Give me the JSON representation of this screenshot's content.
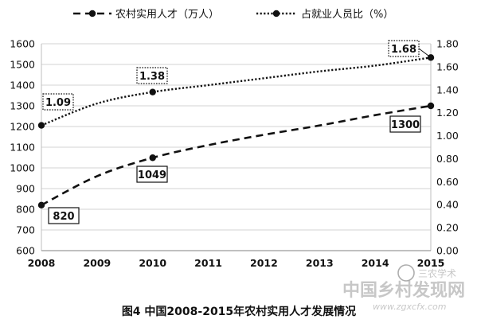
{
  "chart_data": {
    "type": "line",
    "title": "",
    "caption": "图4 中国2008-2015年农村实用人才发展情况",
    "x": [
      "2008",
      "2009",
      "2010",
      "2011",
      "2012",
      "2013",
      "2014",
      "2015"
    ],
    "y_left": {
      "min": 600,
      "max": 1600,
      "step": 100,
      "ticks": [
        "600",
        "700",
        "800",
        "900",
        "1000",
        "1100",
        "1200",
        "1300",
        "1400",
        "1500",
        "1600"
      ]
    },
    "y_right": {
      "min": 0,
      "max": 1.8,
      "step": 0.2,
      "ticks": [
        "0.00",
        "0.20",
        "0.40",
        "0.60",
        "0.80",
        "1.00",
        "1.20",
        "1.40",
        "1.60",
        "1.80"
      ]
    },
    "grid": true,
    "legend_position": "top",
    "series": [
      {
        "name": "农村实用人才（万人）",
        "axis": "left",
        "style": "dashed",
        "color": "#111111",
        "points": [
          [
            2008,
            820
          ],
          [
            2010,
            1049
          ],
          [
            2015,
            1300
          ]
        ],
        "curve": [
          [
            2008,
            820
          ],
          [
            2009,
            960
          ],
          [
            2010,
            1049
          ],
          [
            2011,
            1110
          ],
          [
            2012,
            1160
          ],
          [
            2013,
            1205
          ],
          [
            2014,
            1255
          ],
          [
            2015,
            1300
          ]
        ],
        "labels": [
          {
            "x": 2008,
            "text": "820"
          },
          {
            "x": 2010,
            "text": "1049"
          },
          {
            "x": 2015,
            "text": "1300"
          }
        ]
      },
      {
        "name": "占就业人员比（%）",
        "axis": "right",
        "style": "dotted",
        "color": "#111111",
        "points": [
          [
            2008,
            1.09
          ],
          [
            2010,
            1.38
          ],
          [
            2015,
            1.68
          ]
        ],
        "curve": [
          [
            2008,
            1.09
          ],
          [
            2009,
            1.28
          ],
          [
            2010,
            1.38
          ],
          [
            2011,
            1.44
          ],
          [
            2012,
            1.5
          ],
          [
            2013,
            1.56
          ],
          [
            2014,
            1.61
          ],
          [
            2015,
            1.68
          ]
        ],
        "labels": [
          {
            "x": 2008,
            "text": "1.09"
          },
          {
            "x": 2010,
            "text": "1.38"
          },
          {
            "x": 2015,
            "text": "1.68"
          }
        ]
      }
    ]
  },
  "watermark": {
    "line1": "三农学术",
    "line2": "中国乡村发现网",
    "line3": "www.zgxcfx.com"
  }
}
